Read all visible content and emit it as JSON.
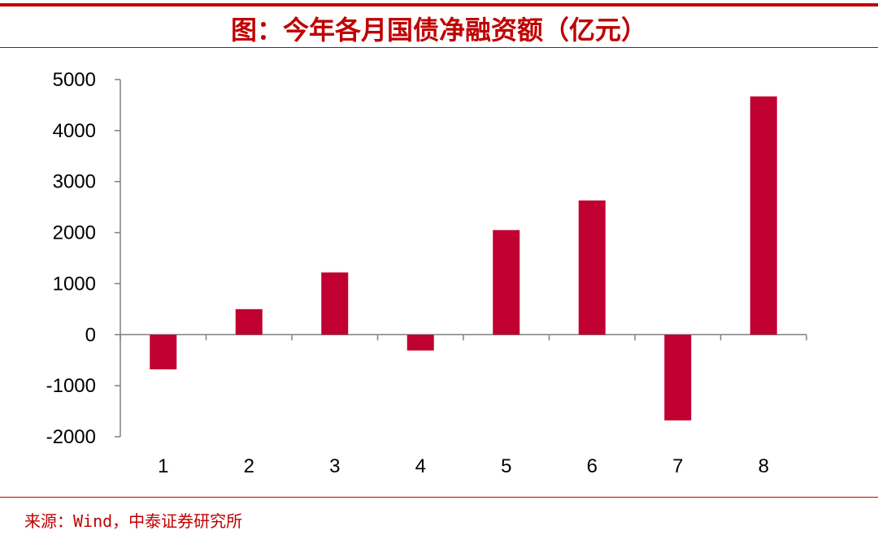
{
  "title": "图：今年各月国债净融资额（亿元）",
  "source": "来源：Wind，中泰证券研究所",
  "colors": {
    "accent": "#c00000",
    "bar": "#c00030",
    "axis": "#808080"
  },
  "chart_data": {
    "type": "bar",
    "title": "图：今年各月国债净融资额（亿元）",
    "xlabel": "",
    "ylabel": "",
    "categories": [
      "1",
      "2",
      "3",
      "4",
      "5",
      "6",
      "7",
      "8"
    ],
    "values": [
      -680,
      500,
      1220,
      -310,
      2050,
      2630,
      -1680,
      4670
    ],
    "ylim": [
      -2000,
      5000
    ],
    "yticks": [
      5000,
      4000,
      3000,
      2000,
      1000,
      0,
      -1000,
      -2000
    ],
    "grid": false,
    "legend": "none"
  }
}
